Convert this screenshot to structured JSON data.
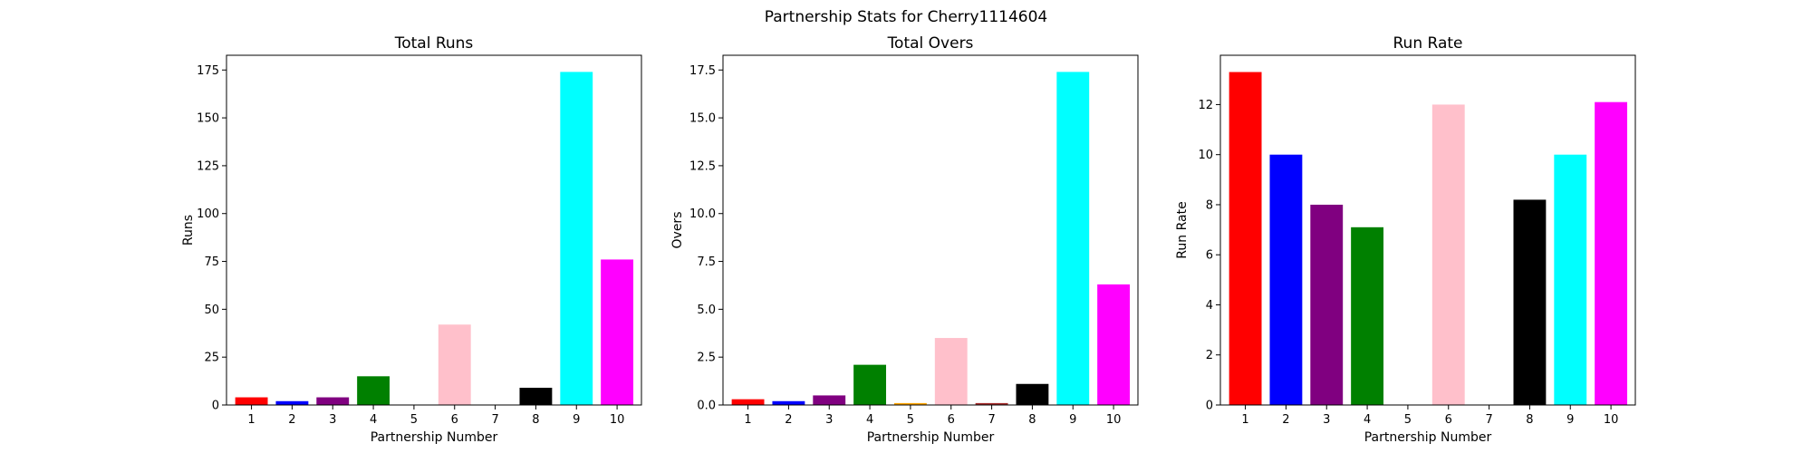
{
  "figure": {
    "title": "Partnership Stats for Cherry1114604"
  },
  "bar_colors": [
    "#ff0000",
    "#0000ff",
    "#800080",
    "#008000",
    "#ffa500",
    "#ffc0cb",
    "#a52a2a",
    "#000000",
    "#00ffff",
    "#ff00ff"
  ],
  "chart_data": [
    {
      "type": "bar",
      "title": "Total Runs",
      "xlabel": "Partnership Number",
      "ylabel": "Runs",
      "categories": [
        "1",
        "2",
        "3",
        "4",
        "5",
        "6",
        "7",
        "8",
        "9",
        "10"
      ],
      "values": [
        4,
        2,
        4,
        15,
        0,
        42,
        0,
        9,
        174,
        76
      ],
      "ylim": [
        0,
        182.7
      ],
      "yticks": [
        0,
        25,
        50,
        75,
        100,
        125,
        150,
        175
      ],
      "ytick_labels": [
        "0",
        "25",
        "50",
        "75",
        "100",
        "125",
        "150",
        "175"
      ],
      "grid": false
    },
    {
      "type": "bar",
      "title": "Total Overs",
      "xlabel": "Partnership Number",
      "ylabel": "Overs",
      "categories": [
        "1",
        "2",
        "3",
        "4",
        "5",
        "6",
        "7",
        "8",
        "9",
        "10"
      ],
      "values": [
        0.3,
        0.2,
        0.5,
        2.1,
        0.1,
        3.5,
        0.1,
        1.1,
        17.4,
        6.3
      ],
      "ylim": [
        0,
        18.27
      ],
      "yticks": [
        0,
        2.5,
        5,
        7.5,
        10,
        12.5,
        15,
        17.5
      ],
      "ytick_labels": [
        "0.0",
        "2.5",
        "5.0",
        "7.5",
        "10.0",
        "12.5",
        "15.0",
        "17.5"
      ],
      "grid": false
    },
    {
      "type": "bar",
      "title": "Run Rate",
      "xlabel": "Partnership Number",
      "ylabel": "Run Rate",
      "categories": [
        "1",
        "2",
        "3",
        "4",
        "5",
        "6",
        "7",
        "8",
        "9",
        "10"
      ],
      "values": [
        13.3,
        10.0,
        8.0,
        7.1,
        0,
        12.0,
        0,
        8.2,
        10.0,
        12.1
      ],
      "ylim": [
        0,
        13.97
      ],
      "yticks": [
        0,
        2,
        4,
        6,
        8,
        10,
        12
      ],
      "ytick_labels": [
        "0",
        "2",
        "4",
        "6",
        "8",
        "10",
        "12"
      ],
      "grid": false
    }
  ]
}
